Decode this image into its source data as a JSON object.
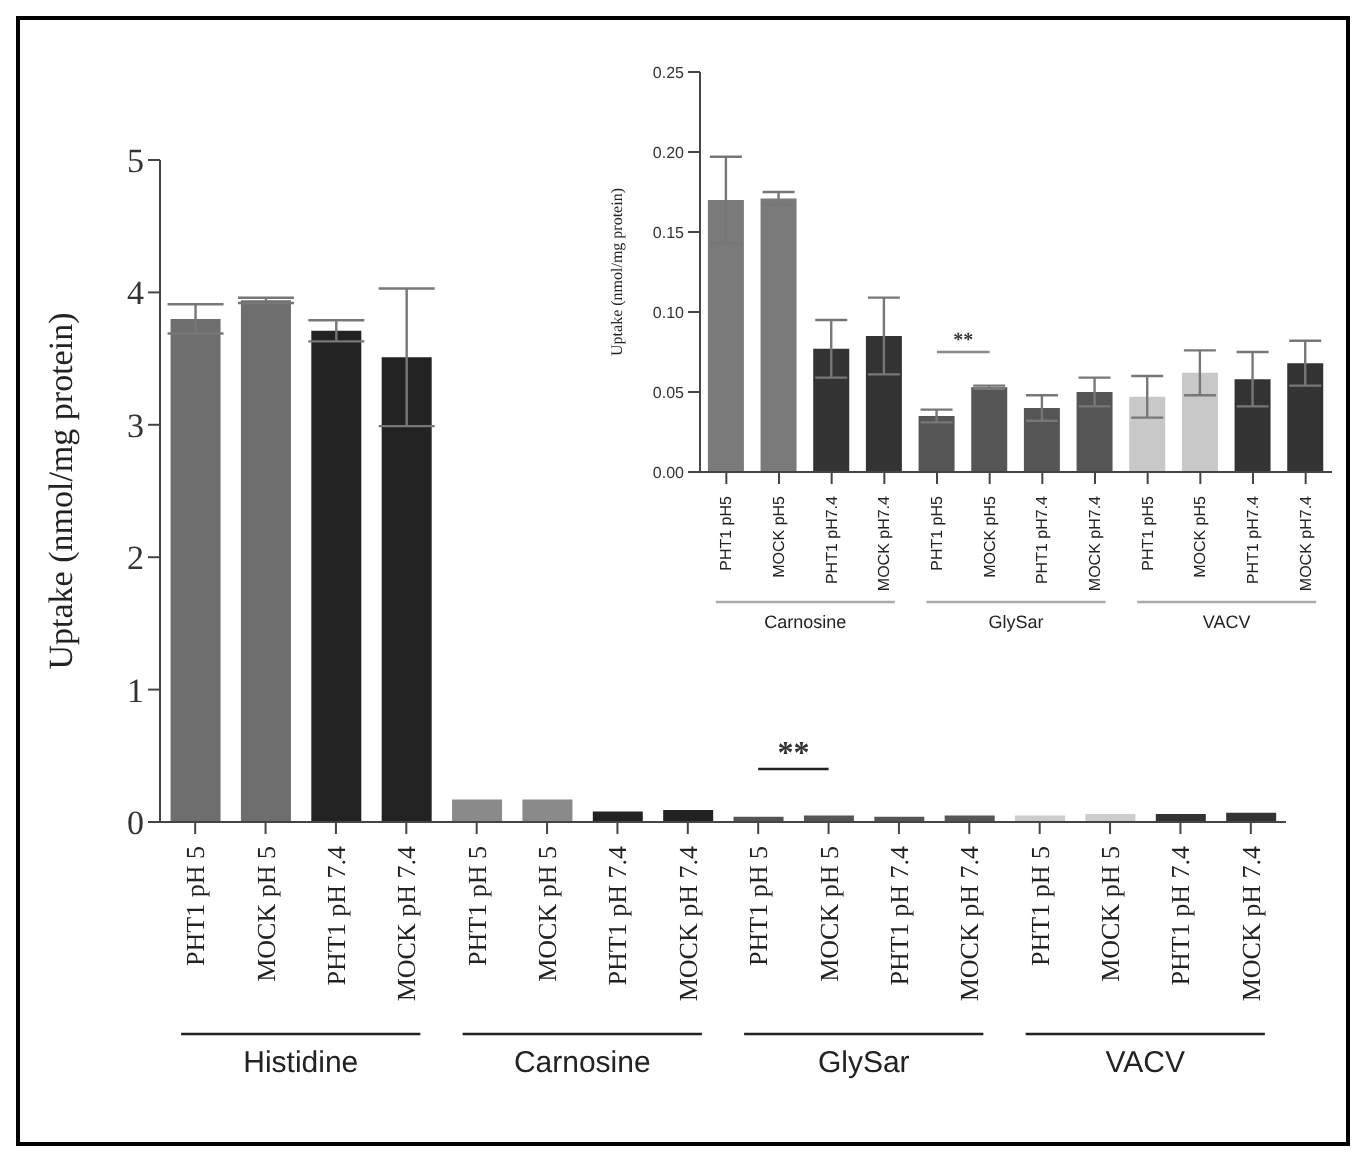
{
  "chart_data": [
    {
      "type": "bar",
      "ylabel": "Uptake (nmol/mg protein)",
      "categories": [
        "PHT1 pH 5",
        "MOCK pH 5",
        "PHT1 pH 7.4",
        "MOCK pH 7.4",
        "PHT1 pH 5",
        "MOCK pH 5",
        "PHT1 pH 7.4",
        "MOCK pH 7.4",
        "PHT1 pH 5",
        "MOCK pH 5",
        "PHT1 pH 7.4",
        "MOCK pH 7.4",
        "PHT1 pH 5",
        "MOCK pH 5",
        "PHT1 pH 7.4",
        "MOCK pH 7.4"
      ],
      "values": [
        3.8,
        3.94,
        3.71,
        3.51,
        0.17,
        0.17,
        0.08,
        0.09,
        0.04,
        0.05,
        0.04,
        0.05,
        0.05,
        0.06,
        0.06,
        0.07
      ],
      "errors": [
        0.11,
        0.02,
        0.08,
        0.52,
        null,
        null,
        null,
        null,
        null,
        null,
        null,
        null,
        null,
        null,
        null,
        null
      ],
      "colors": [
        "#6e6e6e",
        "#6e6e6e",
        "#222222",
        "#222222",
        "#8a8a8a",
        "#8a8a8a",
        "#222222",
        "#222222",
        "#555555",
        "#555555",
        "#555555",
        "#555555",
        "#cccccc",
        "#cccccc",
        "#333333",
        "#333333"
      ],
      "ylim": [
        0,
        5
      ],
      "yticks": [
        0,
        1,
        2,
        3,
        4,
        5
      ],
      "annotations": [
        "Histidine",
        "Carnosine",
        "GlySar",
        "VACV",
        "**"
      ]
    },
    {
      "type": "bar",
      "ylabel": "Uptake (nmol/mg protein)",
      "categories": [
        "PHT1 pH5",
        "MOCK pH5",
        "PHT1 pH7.4",
        "MOCK pH7.4",
        "PHT1 pH5",
        "MOCK pH5",
        "PHT1 pH7.4",
        "MOCK pH7.4",
        "PHT1 pH5",
        "MOCK pH5",
        "PHT1 pH7.4",
        "MOCK pH7.4"
      ],
      "values": [
        0.17,
        0.171,
        0.077,
        0.085,
        0.035,
        0.053,
        0.04,
        0.05,
        0.047,
        0.062,
        0.058,
        0.068
      ],
      "errors": [
        0.027,
        0.004,
        0.018,
        0.024,
        0.004,
        0.001,
        0.008,
        0.009,
        0.013,
        0.014,
        0.017,
        0.014
      ],
      "colors": [
        "#7a7a7a",
        "#7a7a7a",
        "#333333",
        "#333333",
        "#555555",
        "#555555",
        "#555555",
        "#555555",
        "#c8c8c8",
        "#c8c8c8",
        "#333333",
        "#333333"
      ],
      "ylim": [
        0,
        0.25
      ],
      "yticks": [
        {
          "value": 0,
          "label": "0.00"
        },
        {
          "value": 0.05,
          "label": "0.05"
        },
        {
          "value": 0.1,
          "label": "0.10"
        },
        {
          "value": 0.15,
          "label": "0.15"
        },
        {
          "value": 0.2,
          "label": "0.20"
        },
        {
          "value": 0.25,
          "label": "0.25"
        }
      ],
      "annotations": [
        "Carnosine",
        "GlySar",
        "VACV",
        "**"
      ]
    }
  ]
}
